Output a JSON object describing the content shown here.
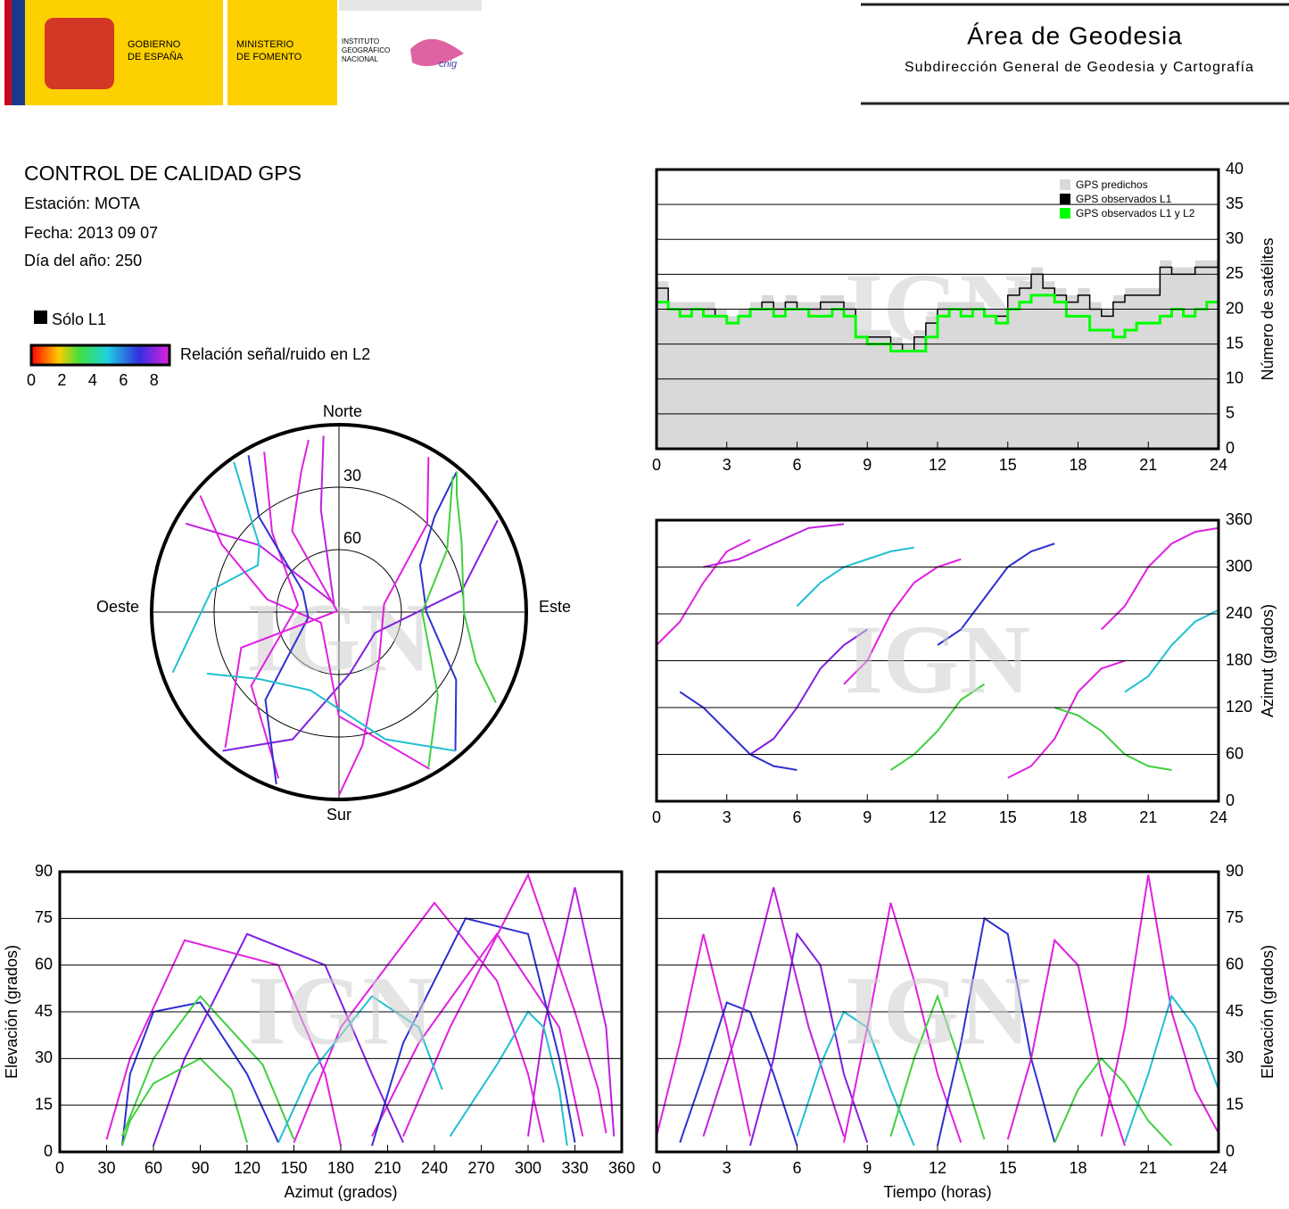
{
  "header": {
    "gov": [
      "GOBIERNO",
      "DE ESPAÑA"
    ],
    "ministry": [
      "MINISTERIO",
      "DE FOMENTO"
    ],
    "institute": [
      "INSTITUTO",
      "GEOGRÁFICO",
      "NACIONAL"
    ],
    "cnig": "cnig",
    "title": "Área de Geodesia",
    "subtitle": "Subdirección General de Geodesia y Cartografía"
  },
  "info": {
    "title": "CONTROL DE CALIDAD GPS",
    "lines": [
      "Estación: MOTA",
      "Fecha: 2013 09 07",
      "Día del año: 250"
    ]
  },
  "legend": {
    "l1_only": "Sólo L1",
    "colorbar_label": "Relación señal/ruido en L2",
    "colorbar_ticks": [
      0,
      2,
      4,
      6,
      8
    ],
    "colorbar_range": [
      0,
      9
    ]
  },
  "watermark": "IGN",
  "chart_data": [
    {
      "type": "step",
      "x": [
        0,
        0.5,
        1,
        1.5,
        2,
        2.5,
        3,
        3.5,
        4,
        4.5,
        5,
        5.5,
        6,
        6.5,
        7,
        7.5,
        8,
        8.5,
        9,
        9.5,
        10,
        10.5,
        11,
        11.5,
        12,
        12.5,
        13,
        13.5,
        14,
        14.5,
        15,
        15.5,
        16,
        16.5,
        17,
        17.5,
        18,
        18.5,
        19,
        19.5,
        20,
        20.5,
        21,
        21.5,
        22,
        22.5,
        23,
        23.5,
        24
      ],
      "series": [
        {
          "name": "GPS predichos",
          "color": "#d9d9d9",
          "values": [
            24,
            21,
            21,
            21,
            21,
            20,
            19,
            20,
            21,
            22,
            21,
            22,
            21,
            21,
            22,
            22,
            21,
            17,
            17,
            17,
            16,
            15,
            17,
            19,
            21,
            21,
            21,
            21,
            20,
            20,
            23,
            24,
            26,
            24,
            23,
            22,
            23,
            21,
            20,
            22,
            23,
            23,
            23,
            27,
            26,
            26,
            27,
            27,
            29
          ]
        },
        {
          "name": "GPS observados L1",
          "color": "#000000",
          "values": [
            23,
            20,
            20,
            20,
            20,
            19,
            18,
            19,
            20,
            21,
            20,
            21,
            20,
            20,
            21,
            21,
            20,
            16,
            16,
            16,
            15,
            14,
            16,
            18,
            20,
            20,
            20,
            20,
            19,
            19,
            22,
            23,
            25,
            23,
            22,
            21,
            22,
            20,
            19,
            21,
            22,
            22,
            22,
            26,
            25,
            25,
            26,
            26,
            28
          ]
        },
        {
          "name": "GPS observados L1 y L2",
          "color": "#00ff00",
          "values": [
            21,
            20,
            19,
            20,
            19,
            19,
            18,
            19,
            20,
            20,
            19,
            20,
            20,
            19,
            19,
            20,
            19,
            16,
            15,
            15,
            14,
            14,
            14,
            16,
            19,
            20,
            19,
            20,
            19,
            18,
            20,
            21,
            22,
            22,
            21,
            19,
            19,
            17,
            17,
            16,
            17,
            18,
            18,
            19,
            20,
            19,
            20,
            21,
            23
          ]
        }
      ],
      "xlim": [
        0,
        24
      ],
      "xticks": [
        0,
        3,
        6,
        9,
        12,
        15,
        18,
        21,
        24
      ],
      "ylim": [
        0,
        40
      ],
      "yticks": [
        0,
        5,
        10,
        15,
        20,
        25,
        30,
        35,
        40
      ],
      "ylabel": "Número de satélites",
      "grid": true,
      "legend": "upper right"
    },
    {
      "type": "track",
      "x_field": "time",
      "y_field": "azimuth",
      "xlim": [
        0,
        24
      ],
      "xticks": [
        0,
        3,
        6,
        9,
        12,
        15,
        18,
        21,
        24
      ],
      "ylim": [
        0,
        360
      ],
      "yticks": [
        0,
        60,
        120,
        180,
        240,
        300,
        360
      ],
      "ylabel": "Azimut (grados)",
      "grid": true
    },
    {
      "type": "track",
      "x_field": "azimuth",
      "y_field": "elevation",
      "xlim": [
        0,
        360
      ],
      "xticks": [
        0,
        30,
        60,
        90,
        120,
        150,
        180,
        210,
        240,
        270,
        300,
        330,
        360
      ],
      "ylim": [
        0,
        90
      ],
      "yticks": [
        0,
        15,
        30,
        45,
        60,
        75,
        90
      ],
      "xlabel": "Azimut (grados)",
      "ylabel": "Elevación (grados)",
      "grid": true
    },
    {
      "type": "track",
      "x_field": "time",
      "y_field": "elevation",
      "xlim": [
        0,
        24
      ],
      "xticks": [
        0,
        3,
        6,
        9,
        12,
        15,
        18,
        21,
        24
      ],
      "ylim": [
        0,
        90
      ],
      "yticks": [
        0,
        15,
        30,
        45,
        60,
        75,
        90
      ],
      "xlabel": "Tiempo (horas)",
      "ylabel": "Elevación (grados)",
      "grid": true
    },
    {
      "type": "polar",
      "direction_labels": {
        "north": "Norte",
        "south": "Sur",
        "east": "Este",
        "west": "Oeste"
      },
      "rings": [
        30,
        60
      ],
      "elevation_range": [
        0,
        90
      ],
      "passes": [
        {
          "color": "#e020e0",
          "time": [
            0,
            1,
            2,
            3,
            4
          ],
          "azimuth": [
            200,
            230,
            280,
            320,
            335
          ],
          "elevation": [
            5,
            35,
            70,
            40,
            5
          ]
        },
        {
          "color": "#3030d0",
          "time": [
            1,
            2,
            3,
            4,
            5,
            6
          ],
          "azimuth": [
            140,
            120,
            90,
            60,
            45,
            40
          ],
          "elevation": [
            3,
            25,
            48,
            45,
            25,
            2
          ]
        },
        {
          "color": "#c020e0",
          "time": [
            2,
            3.5,
            5,
            6.5,
            8
          ],
          "azimuth": [
            300,
            310,
            330,
            350,
            355
          ],
          "elevation": [
            5,
            40,
            85,
            40,
            5
          ]
        },
        {
          "color": "#8020e0",
          "time": [
            4,
            5,
            6,
            7,
            8,
            9
          ],
          "azimuth": [
            60,
            80,
            120,
            170,
            200,
            220
          ],
          "elevation": [
            2,
            30,
            70,
            60,
            25,
            3
          ]
        },
        {
          "color": "#20c0d0",
          "time": [
            6,
            7,
            8,
            9,
            10,
            11
          ],
          "azimuth": [
            250,
            280,
            300,
            310,
            320,
            325
          ],
          "elevation": [
            5,
            28,
            45,
            40,
            20,
            2
          ]
        },
        {
          "color": "#e020e0",
          "time": [
            8,
            9,
            10,
            11,
            12,
            13
          ],
          "azimuth": [
            150,
            180,
            240,
            280,
            300,
            310
          ],
          "elevation": [
            3,
            40,
            80,
            55,
            25,
            3
          ]
        },
        {
          "color": "#40d040",
          "time": [
            10,
            11,
            12,
            13,
            14
          ],
          "azimuth": [
            40,
            60,
            90,
            130,
            150
          ],
          "elevation": [
            5,
            30,
            50,
            28,
            4
          ]
        },
        {
          "color": "#3030d0",
          "time": [
            12,
            13,
            14,
            15,
            16,
            17
          ],
          "azimuth": [
            200,
            220,
            260,
            300,
            320,
            330
          ],
          "elevation": [
            2,
            35,
            75,
            70,
            30,
            3
          ]
        },
        {
          "color": "#e020e0",
          "time": [
            15,
            16,
            17,
            18,
            19,
            20
          ],
          "azimuth": [
            30,
            45,
            80,
            140,
            170,
            180
          ],
          "elevation": [
            4,
            30,
            68,
            60,
            25,
            2
          ]
        },
        {
          "color": "#40d040",
          "time": [
            17,
            18,
            19,
            20,
            21,
            22
          ],
          "azimuth": [
            120,
            110,
            90,
            60,
            45,
            40
          ],
          "elevation": [
            3,
            20,
            30,
            22,
            10,
            2
          ]
        },
        {
          "color": "#e020e0",
          "time": [
            19,
            20,
            21,
            22,
            23,
            24
          ],
          "azimuth": [
            220,
            250,
            300,
            330,
            345,
            350
          ],
          "elevation": [
            5,
            40,
            89,
            45,
            20,
            6
          ]
        },
        {
          "color": "#20c0d0",
          "time": [
            20,
            21,
            22,
            23,
            24
          ],
          "azimuth": [
            140,
            160,
            200,
            230,
            245
          ],
          "elevation": [
            3,
            25,
            50,
            40,
            20
          ]
        }
      ]
    }
  ]
}
